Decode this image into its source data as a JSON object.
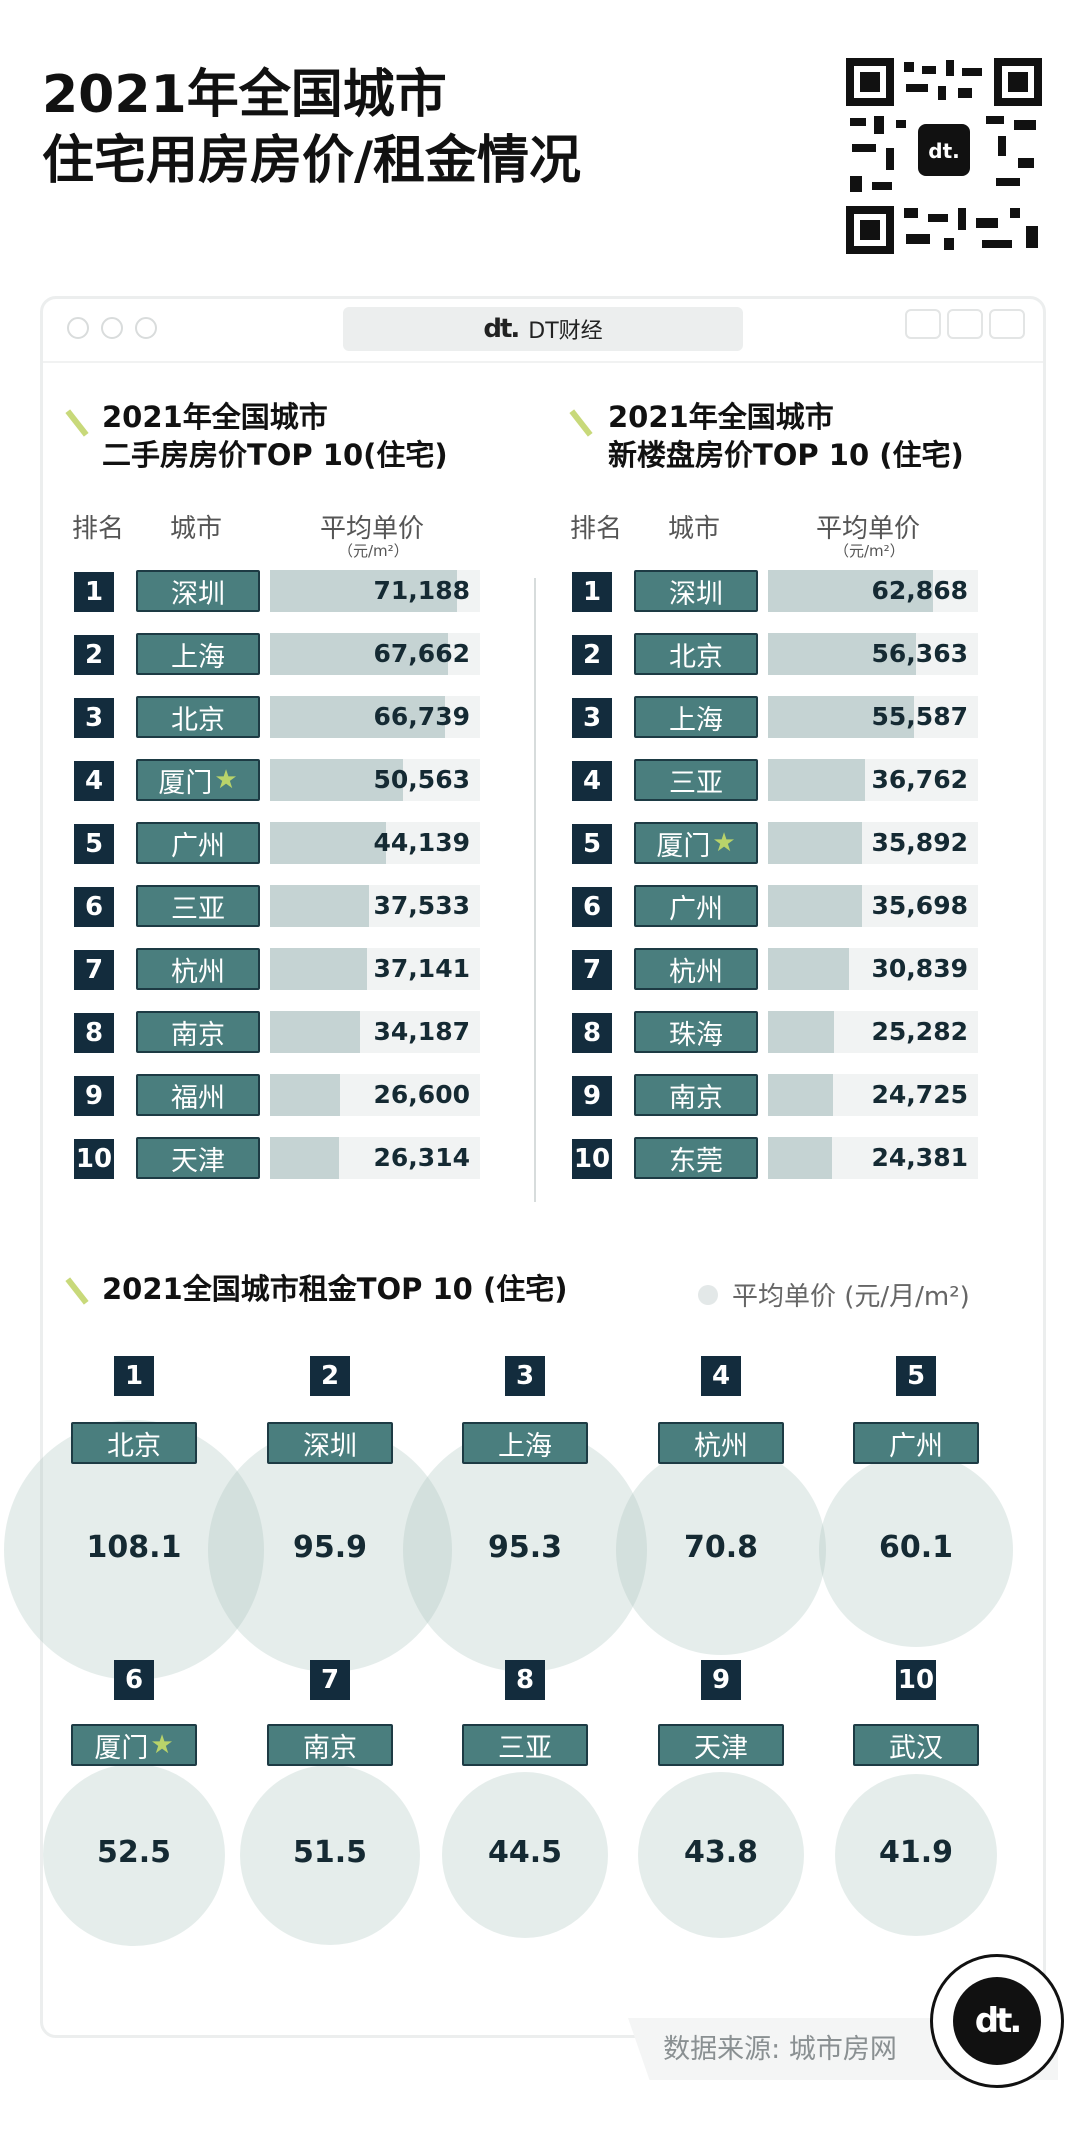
{
  "header": {
    "title_line1": "2021年全国城市",
    "title_line2": "住宅用房房价/租金情况"
  },
  "window": {
    "tab_logo": "dt.",
    "tab_title": "DT财经"
  },
  "colors": {
    "rank_bg": "#132c3d",
    "city_bg": "#4a7e7e",
    "bar_fill": "#c5d3d3",
    "bar_track": "#f1f3f3",
    "bubble": "#aac2bc",
    "star": "#b9d36a"
  },
  "left_chart": {
    "title_line1": "2021年全国城市",
    "title_line2": "二手房房价TOP 10(住宅)",
    "col_rank": "排名",
    "col_city": "城市",
    "col_price": "平均单价",
    "col_unit": "（元/m²）"
  },
  "right_chart": {
    "title_line1": "2021年全国城市",
    "title_line2": "新楼盘房价TOP 10 (住宅)",
    "col_rank": "排名",
    "col_city": "城市",
    "col_price": "平均单价",
    "col_unit": "（元/m²）"
  },
  "rent_section": {
    "title": "2021全国城市租金TOP 10 (住宅)",
    "legend": "平均单价 (元/月/m²)"
  },
  "chart_data": [
    {
      "type": "bar",
      "title": "2021年全国城市二手房房价TOP 10(住宅)",
      "ylabel": "平均单价（元/m²）",
      "ylim": [
        0,
        80000
      ],
      "ranks": [
        "1",
        "2",
        "3",
        "4",
        "5",
        "6",
        "7",
        "8",
        "9",
        "10"
      ],
      "categories": [
        "深圳",
        "上海",
        "北京",
        "厦门",
        "广州",
        "三亚",
        "杭州",
        "南京",
        "福州",
        "天津"
      ],
      "starred": [
        false,
        false,
        false,
        true,
        false,
        false,
        false,
        false,
        false,
        false
      ],
      "values": [
        71188,
        67662,
        66739,
        50563,
        44139,
        37533,
        37141,
        34187,
        26600,
        26314
      ],
      "labels": [
        "71,188",
        "67,662",
        "66,739",
        "50,563",
        "44,139",
        "37,533",
        "37,141",
        "34,187",
        "26,600",
        "26,314"
      ]
    },
    {
      "type": "bar",
      "title": "2021年全国城市新楼盘房价TOP 10 (住宅)",
      "ylabel": "平均单价（元/m²）",
      "ylim": [
        0,
        80000
      ],
      "ranks": [
        "1",
        "2",
        "3",
        "4",
        "5",
        "6",
        "7",
        "8",
        "9",
        "10"
      ],
      "categories": [
        "深圳",
        "北京",
        "上海",
        "三亚",
        "厦门",
        "广州",
        "杭州",
        "珠海",
        "南京",
        "东莞"
      ],
      "starred": [
        false,
        false,
        false,
        false,
        true,
        false,
        false,
        false,
        false,
        false
      ],
      "values": [
        62868,
        56363,
        55587,
        36762,
        35892,
        35698,
        30839,
        25282,
        24725,
        24381
      ],
      "labels": [
        "62,868",
        "56,363",
        "55,587",
        "36,762",
        "35,892",
        "35,698",
        "30,839",
        "25,282",
        "24,725",
        "24,381"
      ]
    },
    {
      "type": "bubble",
      "title": "2021全国城市租金TOP 10 (住宅)",
      "ylabel": "平均单价 (元/月/m²)",
      "ranks": [
        "1",
        "2",
        "3",
        "4",
        "5",
        "6",
        "7",
        "8",
        "9",
        "10"
      ],
      "categories": [
        "北京",
        "深圳",
        "上海",
        "杭州",
        "广州",
        "厦门",
        "南京",
        "三亚",
        "天津",
        "武汉"
      ],
      "starred": [
        false,
        false,
        false,
        false,
        false,
        true,
        false,
        false,
        false,
        false
      ],
      "values": [
        108.1,
        95.9,
        95.3,
        70.8,
        60.1,
        52.5,
        51.5,
        44.5,
        43.8,
        41.9
      ],
      "labels": [
        "108.1",
        "95.9",
        "95.3",
        "70.8",
        "60.1",
        "52.5",
        "51.5",
        "44.5",
        "43.8",
        "41.9"
      ]
    }
  ],
  "footer": {
    "source": "数据来源: 城市房网",
    "badge_logo": "dt."
  }
}
